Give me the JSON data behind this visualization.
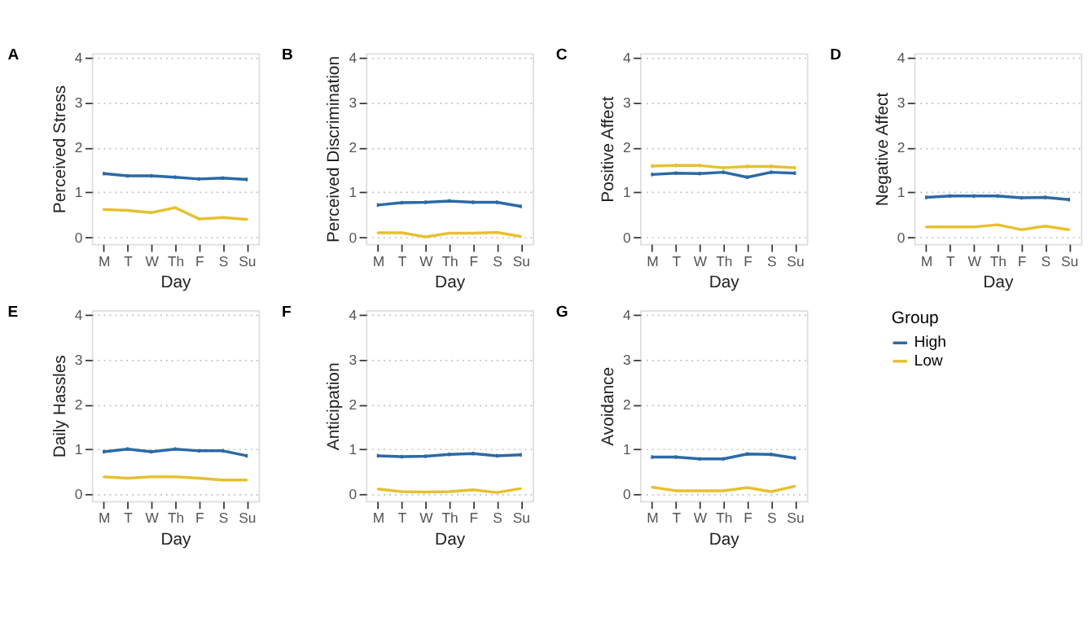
{
  "chart_data": [
    {
      "type": "line",
      "title": "A",
      "xlabel": "Day",
      "ylabel": "Perceived Stress",
      "categories": [
        "M",
        "T",
        "W",
        "Th",
        "F",
        "S",
        "Su"
      ],
      "ylim": [
        -0.15,
        4.1
      ],
      "yticks": [
        0,
        1,
        2,
        3,
        4
      ],
      "grid": "y",
      "series": [
        {
          "color": "#2b6aa6",
          "values": [
            1.42,
            1.37,
            1.37,
            1.34,
            1.3,
            1.32,
            1.29
          ],
          "errors": [
            0.04,
            0.04,
            0.04,
            0.04,
            0.04,
            0.04,
            0.04
          ]
        },
        {
          "color": "#e6c130",
          "values": [
            0.62,
            0.6,
            0.55,
            0.66,
            0.41,
            0.44,
            0.4
          ],
          "errors": [
            0.03,
            0.03,
            0.03,
            0.03,
            0.03,
            0.03,
            0.03
          ]
        }
      ]
    },
    {
      "type": "line",
      "title": "B",
      "xlabel": "Day",
      "ylabel": "Perceived Discrimination",
      "categories": [
        "M",
        "T",
        "W",
        "Th",
        "F",
        "S",
        "Su"
      ],
      "ylim": [
        -0.15,
        4.1
      ],
      "yticks": [
        0,
        1,
        2,
        3,
        4
      ],
      "grid": "y",
      "series": [
        {
          "color": "#2b6aa6",
          "values": [
            0.72,
            0.77,
            0.78,
            0.81,
            0.78,
            0.78,
            0.69
          ],
          "errors": [
            0.04,
            0.04,
            0.04,
            0.04,
            0.04,
            0.04,
            0.04
          ]
        },
        {
          "color": "#e6c130",
          "values": [
            0.1,
            0.1,
            0.01,
            0.09,
            0.09,
            0.11,
            0.02
          ],
          "errors": [
            0.02,
            0.02,
            0.02,
            0.02,
            0.02,
            0.02,
            0.02
          ]
        }
      ]
    },
    {
      "type": "line",
      "title": "C",
      "xlabel": "Day",
      "ylabel": "Positive Affect",
      "categories": [
        "M",
        "T",
        "W",
        "Th",
        "F",
        "S",
        "Su"
      ],
      "ylim": [
        -0.15,
        4.1
      ],
      "yticks": [
        0,
        1,
        2,
        3,
        4
      ],
      "grid": "y",
      "series": [
        {
          "color": "#2b6aa6",
          "values": [
            1.4,
            1.43,
            1.42,
            1.45,
            1.34,
            1.45,
            1.43
          ],
          "errors": [
            0.04,
            0.04,
            0.04,
            0.04,
            0.04,
            0.04,
            0.04
          ]
        },
        {
          "color": "#e6c130",
          "values": [
            1.59,
            1.6,
            1.6,
            1.55,
            1.58,
            1.58,
            1.55
          ],
          "errors": [
            0.04,
            0.04,
            0.04,
            0.04,
            0.04,
            0.04,
            0.04
          ]
        }
      ]
    },
    {
      "type": "line",
      "title": "D",
      "xlabel": "Day",
      "ylabel": "Negative Affect",
      "categories": [
        "M",
        "T",
        "W",
        "Th",
        "F",
        "S",
        "Su"
      ],
      "ylim": [
        -0.15,
        4.1
      ],
      "yticks": [
        0,
        1,
        2,
        3,
        4
      ],
      "grid": "y",
      "series": [
        {
          "color": "#2b6aa6",
          "values": [
            0.89,
            0.92,
            0.92,
            0.92,
            0.88,
            0.89,
            0.84
          ],
          "errors": [
            0.04,
            0.04,
            0.04,
            0.04,
            0.04,
            0.04,
            0.04
          ]
        },
        {
          "color": "#e6c130",
          "values": [
            0.23,
            0.23,
            0.23,
            0.28,
            0.17,
            0.25,
            0.17
          ],
          "errors": [
            0.02,
            0.02,
            0.02,
            0.02,
            0.02,
            0.02,
            0.02
          ]
        }
      ]
    },
    {
      "type": "line",
      "title": "E",
      "xlabel": "Day",
      "ylabel": "Daily Hassles",
      "categories": [
        "M",
        "T",
        "W",
        "Th",
        "F",
        "S",
        "Su"
      ],
      "ylim": [
        -0.15,
        4.1
      ],
      "yticks": [
        0,
        1,
        2,
        3,
        4
      ],
      "grid": "y",
      "series": [
        {
          "color": "#2b6aa6",
          "values": [
            0.95,
            1.01,
            0.95,
            1.01,
            0.97,
            0.97,
            0.86
          ],
          "errors": [
            0.04,
            0.04,
            0.04,
            0.04,
            0.04,
            0.04,
            0.04
          ]
        },
        {
          "color": "#e6c130",
          "values": [
            0.39,
            0.36,
            0.39,
            0.39,
            0.36,
            0.32,
            0.32
          ],
          "errors": [
            0.02,
            0.02,
            0.02,
            0.02,
            0.02,
            0.02,
            0.02
          ]
        }
      ]
    },
    {
      "type": "line",
      "title": "F",
      "xlabel": "Day",
      "ylabel": "Anticipation",
      "categories": [
        "M",
        "T",
        "W",
        "Th",
        "F",
        "S",
        "Su"
      ],
      "ylim": [
        -0.15,
        4.1
      ],
      "yticks": [
        0,
        1,
        2,
        3,
        4
      ],
      "grid": "y",
      "series": [
        {
          "color": "#2b6aa6",
          "values": [
            0.86,
            0.84,
            0.85,
            0.89,
            0.91,
            0.86,
            0.88
          ],
          "errors": [
            0.04,
            0.04,
            0.04,
            0.04,
            0.04,
            0.04,
            0.04
          ]
        },
        {
          "color": "#e6c130",
          "values": [
            0.12,
            0.06,
            0.05,
            0.06,
            0.1,
            0.04,
            0.13
          ],
          "errors": [
            0.02,
            0.02,
            0.02,
            0.02,
            0.02,
            0.02,
            0.02
          ]
        }
      ]
    },
    {
      "type": "line",
      "title": "G",
      "xlabel": "Day",
      "ylabel": "Avoidance",
      "categories": [
        "M",
        "T",
        "W",
        "Th",
        "F",
        "S",
        "Su"
      ],
      "ylim": [
        -0.15,
        4.1
      ],
      "yticks": [
        0,
        1,
        2,
        3,
        4
      ],
      "grid": "y",
      "legend": "right",
      "legend_title": "Group",
      "series": [
        {
          "name": "High",
          "color": "#2b6aa6",
          "values": [
            0.83,
            0.83,
            0.79,
            0.79,
            0.9,
            0.89,
            0.81
          ],
          "errors": [
            0.04,
            0.04,
            0.04,
            0.04,
            0.04,
            0.04,
            0.04
          ]
        },
        {
          "name": "Low",
          "color": "#e6c130",
          "values": [
            0.16,
            0.08,
            0.08,
            0.08,
            0.15,
            0.06,
            0.18
          ],
          "errors": [
            0.02,
            0.02,
            0.02,
            0.02,
            0.02,
            0.02,
            0.02
          ]
        }
      ]
    }
  ]
}
